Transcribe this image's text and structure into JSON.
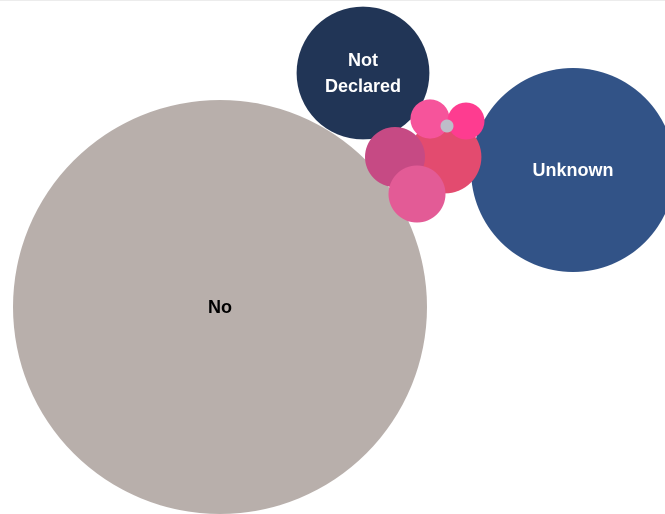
{
  "chart_data": {
    "type": "bubble",
    "title": "",
    "legend": "none",
    "categories": [
      "No",
      "Unknown",
      "Not Declared",
      "",
      "",
      "",
      "",
      "",
      ""
    ],
    "series": [
      {
        "values": [
          100,
          24.3,
          10.3,
          3.1,
          2.1,
          1.9,
          0.9,
          0.8,
          0.1
        ],
        "colors": [
          "#b8afab",
          "#325387",
          "#213556",
          "#e34b6f",
          "#c64a84",
          "#e35b96",
          "#f6549b",
          "#fe3c90",
          "#bdbdc9"
        ],
        "label_colors": [
          "#000000",
          "#ffffff",
          "#ffffff",
          "#ffffff",
          "#ffffff",
          "#ffffff",
          "#ffffff",
          "#ffffff",
          "#ffffff"
        ]
      }
    ]
  }
}
